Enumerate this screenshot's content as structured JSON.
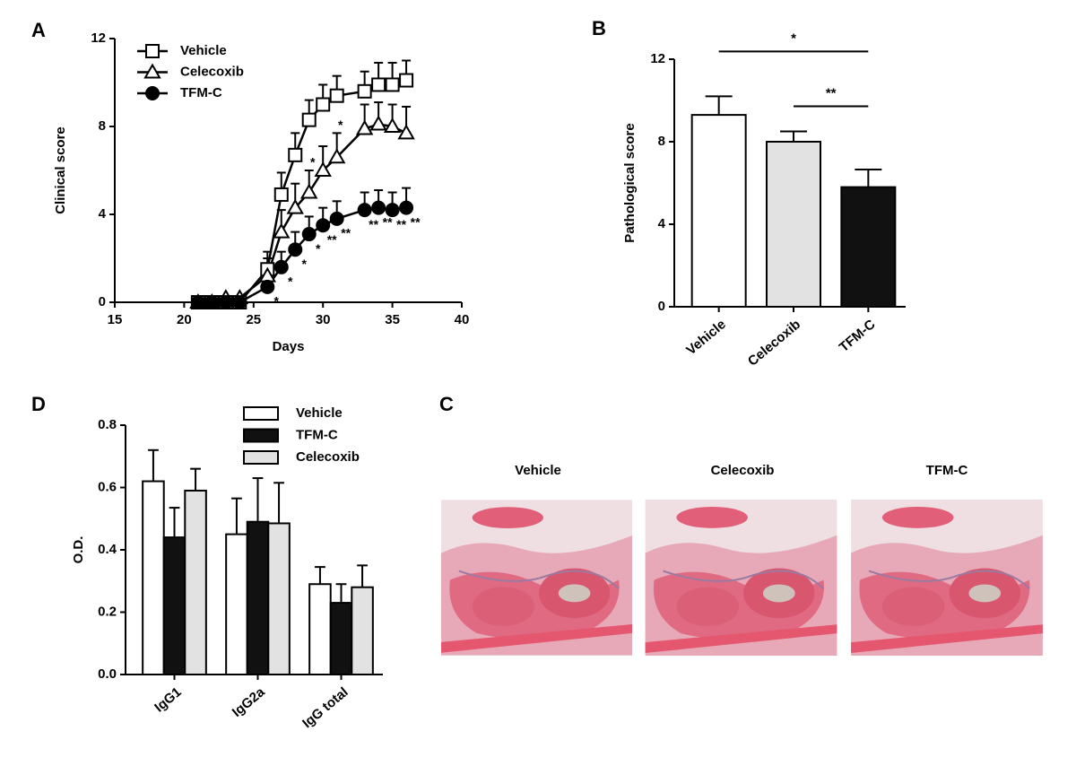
{
  "chart_data": [
    {
      "type": "line",
      "panel": "A",
      "xlabel": "Days",
      "ylabel": "Clinical score",
      "x": [
        21,
        22,
        23,
        24,
        26,
        27,
        28,
        29,
        30,
        31,
        33,
        34,
        35,
        36
      ],
      "xlim": [
        15,
        40
      ],
      "xticks": [
        15,
        20,
        25,
        30,
        35,
        40
      ],
      "ylim": [
        0,
        12
      ],
      "yticks": [
        0,
        4,
        8,
        12
      ],
      "legend": "upper left",
      "series": [
        {
          "name": "Vehicle",
          "marker": "square",
          "marker_fill": "#ffffff",
          "color": "#000000",
          "values": [
            0,
            0,
            0,
            0,
            1.5,
            4.9,
            6.7,
            8.3,
            9.0,
            9.4,
            9.6,
            9.9,
            9.9,
            10.1
          ],
          "errors": [
            0,
            0,
            0,
            0,
            0.8,
            1.0,
            1.0,
            0.9,
            0.9,
            0.9,
            0.9,
            1.0,
            1.0,
            0.9
          ]
        },
        {
          "name": "Celecoxib",
          "marker": "triangle",
          "marker_fill": "#ffffff",
          "color": "#000000",
          "values": [
            0,
            0,
            0.2,
            0.2,
            1.2,
            3.2,
            4.3,
            5.0,
            6.0,
            6.6,
            7.9,
            8.1,
            8.0,
            7.7
          ],
          "errors": [
            0,
            0,
            0,
            0,
            0.8,
            1.0,
            1.1,
            1.0,
            1.1,
            1.1,
            1.1,
            1.0,
            1.0,
            1.2
          ],
          "significance": [
            null,
            null,
            null,
            null,
            null,
            null,
            null,
            "*",
            null,
            "*",
            null,
            null,
            null,
            null
          ]
        },
        {
          "name": "TFM-C",
          "marker": "circle",
          "marker_fill": "#000000",
          "color": "#000000",
          "values": [
            0,
            0,
            0,
            0,
            0.7,
            1.6,
            2.4,
            3.1,
            3.5,
            3.8,
            4.2,
            4.3,
            4.2,
            4.3
          ],
          "errors": [
            0,
            0,
            0,
            0,
            0.6,
            0.7,
            0.8,
            0.8,
            0.8,
            0.8,
            0.8,
            0.8,
            0.8,
            0.9
          ],
          "significance": [
            null,
            null,
            null,
            null,
            "*",
            "*",
            "*",
            "*",
            "**",
            "**",
            "**",
            "**",
            "**",
            "**"
          ]
        }
      ]
    },
    {
      "type": "bar",
      "panel": "B",
      "ylabel": "Pathological score",
      "categories": [
        "Vehicle",
        "Celecoxib",
        "TFM-C"
      ],
      "values": [
        9.3,
        8.0,
        5.8
      ],
      "errors": [
        0.9,
        0.5,
        0.85
      ],
      "colors": [
        "#ffffff",
        "#e2e2e2",
        "#111111"
      ],
      "ylim": [
        0,
        12
      ],
      "yticks": [
        0,
        4,
        8,
        12
      ],
      "pairs": [
        [
          0,
          2
        ],
        [
          1,
          2
        ]
      ],
      "pair_labels": [
        "*",
        "**"
      ]
    },
    {
      "type": "bar",
      "panel": "D",
      "ylabel": "O.D.",
      "categories": [
        "IgG1",
        "IgG2a",
        "IgG total"
      ],
      "ylim": [
        0,
        0.8
      ],
      "yticks": [
        {
          "value": 0,
          "label": "0.0"
        },
        0.2,
        0.4,
        0.6,
        0.8
      ],
      "legend": "upper center",
      "series": [
        {
          "name": "Vehicle",
          "color": "#ffffff",
          "values": [
            0.62,
            0.45,
            0.29
          ],
          "errors": [
            0.1,
            0.115,
            0.055
          ]
        },
        {
          "name": "TFM-C",
          "color": "#111111",
          "values": [
            0.44,
            0.49,
            0.23
          ],
          "errors": [
            0.095,
            0.14,
            0.06
          ]
        },
        {
          "name": "Celecoxib",
          "color": "#e2e2e2",
          "values": [
            0.59,
            0.485,
            0.28
          ],
          "errors": [
            0.07,
            0.13,
            0.07
          ]
        }
      ]
    }
  ],
  "panel_c": {
    "label": "C",
    "images": [
      {
        "title": "Vehicle"
      },
      {
        "title": "Celecoxib"
      },
      {
        "title": "TFM-C"
      }
    ]
  }
}
